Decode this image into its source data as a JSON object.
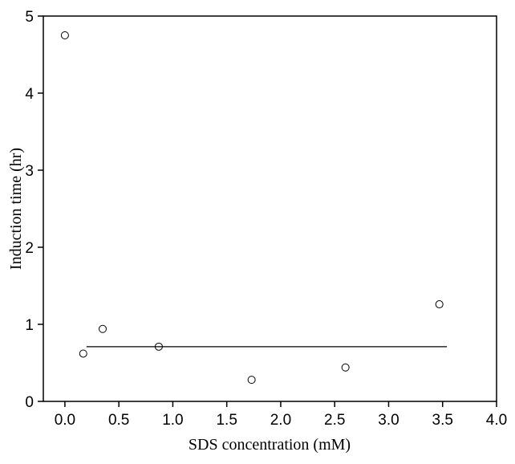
{
  "chart_data": {
    "type": "scatter",
    "x_label": "SDS concentration (mM)",
    "y_label": "Induction time (hr)",
    "x": [
      0,
      0.17,
      0.35,
      0.87,
      1.73,
      2.6,
      3.47
    ],
    "values": [
      4.75,
      0.62,
      0.94,
      0.71,
      0.28,
      0.44,
      1.26
    ],
    "fit_line": {
      "x": [
        0.2,
        3.54
      ],
      "values": [
        0.71,
        0.71
      ]
    },
    "xlim": [
      -0.2,
      4.0
    ],
    "ylim": [
      0,
      5
    ],
    "xticks": [
      {
        "value": 0,
        "label": "0.0"
      },
      {
        "value": 0.5,
        "label": "0.5"
      },
      {
        "value": 1,
        "label": "1.0"
      },
      {
        "value": 1.5,
        "label": "1.5"
      },
      {
        "value": 2,
        "label": "2.0"
      },
      {
        "value": 2.5,
        "label": "2.5"
      },
      {
        "value": 3,
        "label": "3.0"
      },
      {
        "value": 3.5,
        "label": "3.5"
      },
      {
        "value": 4,
        "label": "4.0"
      }
    ],
    "yticks": [
      0,
      1,
      2,
      3,
      4,
      5
    ]
  }
}
